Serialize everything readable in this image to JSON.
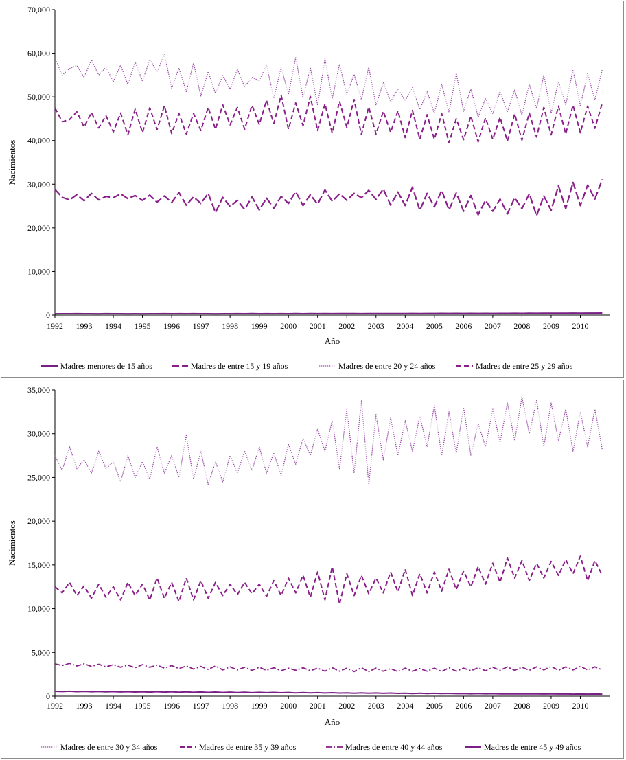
{
  "chart_data": [
    {
      "type": "line",
      "xlabel": "Año",
      "ylabel": "Nacimientos",
      "ylim": [
        0,
        70000
      ],
      "yticks": [
        "0",
        "10,000",
        "20,000",
        "30,000",
        "40,000",
        "50,000",
        "60,000",
        "70,000"
      ],
      "xlim": [
        1992,
        2011
      ],
      "xticks": [
        "1992",
        "1993",
        "1994",
        "1995",
        "1996",
        "1997",
        "1998",
        "1999",
        "2000",
        "2001",
        "2002",
        "2003",
        "2004",
        "2005",
        "2006",
        "2007",
        "2008",
        "2009",
        "2010"
      ],
      "series": [
        {
          "name": "Madres menores de 15 años",
          "style": "solid",
          "color": "#7a1f86",
          "start": 1992,
          "step": 0.25,
          "values": [
            300,
            320,
            310,
            330,
            310,
            320,
            300,
            330,
            310,
            320,
            300,
            310,
            300,
            320,
            310,
            330,
            320,
            330,
            310,
            330,
            310,
            320,
            300,
            320,
            310,
            330,
            320,
            340,
            320,
            330,
            310,
            330,
            320,
            340,
            320,
            340,
            330,
            340,
            330,
            350,
            340,
            350,
            330,
            350,
            340,
            360,
            350,
            360,
            350,
            370,
            360,
            380,
            370,
            390,
            380,
            390,
            370,
            390,
            380,
            400,
            380,
            400,
            390,
            410,
            400,
            420,
            410,
            430,
            420,
            440,
            430,
            450,
            440,
            460,
            450,
            470
          ]
        },
        {
          "name": "Madres de entre 15 y 19 años",
          "style": "longdash",
          "color": "#8a1f8a",
          "start": 1992,
          "step": 0.25,
          "values": [
            28800,
            27000,
            26400,
            27600,
            26200,
            27900,
            26400,
            27200,
            26900,
            27800,
            26700,
            27400,
            26300,
            27500,
            25900,
            27300,
            25800,
            28100,
            25200,
            27100,
            25600,
            27900,
            23500,
            27000,
            24900,
            26300,
            24200,
            27100,
            24100,
            26800,
            24500,
            27200,
            25600,
            28300,
            25100,
            27600,
            25400,
            28700,
            26100,
            27800,
            26300,
            27900,
            26900,
            28600,
            26500,
            28900,
            25200,
            28200,
            25100,
            29300,
            24000,
            27900,
            24800,
            28600,
            24100,
            28000,
            23800,
            27400,
            23000,
            26300,
            23800,
            26600,
            23200,
            26900,
            24400,
            27800,
            22800,
            27300,
            24000,
            29600,
            24400,
            30400,
            25100,
            29800,
            26600,
            31100
          ]
        },
        {
          "name": "Madres de entre 20 y 24 años",
          "style": "dotted",
          "color": "#9b4fa8",
          "start": 1992,
          "step": 0.25,
          "values": [
            59000,
            55000,
            56500,
            57200,
            54500,
            58500,
            55000,
            56800,
            53500,
            57300,
            52800,
            58000,
            53600,
            58600,
            55700,
            59800,
            52000,
            56600,
            51200,
            57800,
            50200,
            55800,
            50800,
            54900,
            51800,
            56300,
            52300,
            54500,
            53700,
            57300,
            49700,
            56800,
            50600,
            59000,
            49800,
            56700,
            48100,
            58700,
            49600,
            57500,
            50500,
            55200,
            49400,
            56800,
            48100,
            53300,
            48900,
            51800,
            49100,
            52200,
            47100,
            51200,
            46300,
            52900,
            46500,
            55400,
            46700,
            51800,
            45400,
            49600,
            46200,
            51200,
            46600,
            51600,
            45800,
            52900,
            47400,
            55000,
            46300,
            53500,
            48200,
            56200,
            48000,
            55300,
            49300,
            56300
          ]
        },
        {
          "name": "Madres de entre 25 y 29 años",
          "style": "dash",
          "color": "#8a1f8a",
          "start": 1992,
          "step": 0.25,
          "values": [
            47500,
            44300,
            44800,
            46600,
            43100,
            46400,
            42900,
            45700,
            42000,
            46300,
            41300,
            47200,
            41800,
            47500,
            42500,
            48000,
            41600,
            46200,
            41500,
            46200,
            42300,
            47600,
            42600,
            48200,
            43600,
            47600,
            42600,
            48100,
            43700,
            49200,
            43900,
            50400,
            42600,
            48600,
            43400,
            50100,
            42300,
            48400,
            41700,
            49000,
            43000,
            49400,
            41400,
            47700,
            41500,
            46700,
            41900,
            46800,
            40700,
            46900,
            40300,
            45900,
            40300,
            46200,
            39500,
            45000,
            40200,
            45600,
            39700,
            45200,
            40300,
            45300,
            39900,
            46100,
            40100,
            46300,
            40800,
            47600,
            41300,
            47900,
            41500,
            48100,
            41800,
            47900,
            42800,
            48600
          ]
        }
      ],
      "legend": [
        "Madres menores de 15 años",
        "Madres de entre 15 y 19 años",
        "Madres de entre 20 y 24 años",
        "Madres de entre 25 y 29 años"
      ],
      "legend_position": "bottom"
    },
    {
      "type": "line",
      "xlabel": "Año",
      "ylabel": "Nacimientos",
      "ylim": [
        0,
        35000
      ],
      "yticks": [
        "0",
        "5,000",
        "10,000",
        "15,000",
        "20,000",
        "25,000",
        "30,000",
        "35,000"
      ],
      "xlim": [
        1992,
        2011
      ],
      "xticks": [
        "1992",
        "1993",
        "1994",
        "1995",
        "1996",
        "1997",
        "1998",
        "1999",
        "2000",
        "2001",
        "2002",
        "2003",
        "2004",
        "2005",
        "2006",
        "2007",
        "2008",
        "2009",
        "2010"
      ],
      "series": [
        {
          "name": "Madres de entre 30 y 34 años",
          "style": "dotted",
          "color": "#9b4fa8",
          "start": 1992,
          "step": 0.25,
          "values": [
            27500,
            25800,
            28500,
            26000,
            27000,
            25500,
            28000,
            26000,
            26800,
            24500,
            27500,
            25000,
            26800,
            24800,
            28500,
            25500,
            27500,
            25000,
            29800,
            24800,
            28000,
            24200,
            26800,
            24500,
            27500,
            25500,
            28000,
            25800,
            28500,
            25500,
            27800,
            25200,
            28800,
            26500,
            29500,
            27500,
            30500,
            28000,
            31500,
            26000,
            32800,
            25500,
            33800,
            24200,
            32200,
            27000,
            31800,
            27500,
            31500,
            28000,
            32000,
            28500,
            33200,
            27500,
            32500,
            27800,
            33000,
            27500,
            31200,
            28500,
            32800,
            29000,
            33500,
            29200,
            34200,
            30000,
            33800,
            28500,
            33500,
            29200,
            32800,
            28000,
            32500,
            28500,
            32800,
            28200
          ]
        },
        {
          "name": "Madres de entre 35 y 39 años",
          "style": "dash",
          "color": "#8a1f8a",
          "start": 1992,
          "step": 0.25,
          "values": [
            12500,
            11800,
            13000,
            11500,
            12600,
            11200,
            12800,
            11300,
            12500,
            11000,
            13000,
            11500,
            12800,
            11000,
            13500,
            11200,
            13000,
            10800,
            13500,
            11000,
            13200,
            11200,
            13000,
            11500,
            12800,
            11600,
            13000,
            11700,
            12800,
            11400,
            13200,
            11500,
            13500,
            11800,
            13800,
            11300,
            14200,
            11000,
            14800,
            10500,
            14000,
            11500,
            13800,
            11700,
            13500,
            11800,
            14200,
            11900,
            14500,
            11500,
            14000,
            11800,
            14200,
            12000,
            14500,
            12200,
            14300,
            12500,
            14800,
            12800,
            15200,
            13000,
            15800,
            13500,
            15500,
            13200,
            15200,
            13500,
            15400,
            13800,
            15600,
            14000,
            16000,
            13200,
            15500,
            13800
          ]
        },
        {
          "name": "Madres de entre 40 y 44 años",
          "style": "dashdot",
          "color": "#8a1f8a",
          "start": 1992,
          "step": 0.25,
          "values": [
            3700,
            3500,
            3750,
            3450,
            3700,
            3400,
            3650,
            3350,
            3600,
            3300,
            3550,
            3250,
            3600,
            3300,
            3550,
            3200,
            3500,
            3150,
            3450,
            3100,
            3400,
            3050,
            3450,
            3000,
            3350,
            3000,
            3300,
            2950,
            3300,
            2950,
            3250,
            2900,
            3200,
            2950,
            3250,
            2900,
            3200,
            2850,
            3250,
            2850,
            3200,
            2800,
            3250,
            2800,
            3200,
            2850,
            3150,
            2800,
            3200,
            2850,
            3150,
            2850,
            3200,
            2800,
            3250,
            2850,
            3200,
            2900,
            3250,
            2900,
            3300,
            2950,
            3350,
            2950,
            3300,
            2950,
            3350,
            3000,
            3400,
            2950,
            3350,
            3000,
            3400,
            3000,
            3350,
            3000
          ]
        },
        {
          "name": "Madres de entre 45 y 49 años",
          "style": "solid",
          "color": "#7a1f86",
          "start": 1992,
          "step": 0.25,
          "values": [
            550,
            520,
            560,
            510,
            540,
            500,
            530,
            490,
            520,
            480,
            510,
            470,
            500,
            460,
            510,
            460,
            500,
            450,
            490,
            440,
            480,
            430,
            470,
            420,
            460,
            410,
            450,
            400,
            440,
            400,
            430,
            390,
            420,
            380,
            410,
            370,
            400,
            360,
            390,
            350,
            380,
            340,
            370,
            330,
            360,
            320,
            350,
            310,
            340,
            300,
            330,
            290,
            320,
            290,
            310,
            280,
            300,
            270,
            290,
            270,
            280,
            260,
            270,
            250,
            260,
            250,
            250,
            240,
            250,
            240,
            250,
            230,
            240,
            230,
            240,
            230
          ]
        }
      ],
      "legend": [
        "Madres de entre 30 y 34 años",
        "Madres de entre 35 y 39 años",
        "Madres de entre 40 y 44 años",
        "Madres de entre 45 y 49 años"
      ],
      "legend_position": "bottom"
    }
  ]
}
